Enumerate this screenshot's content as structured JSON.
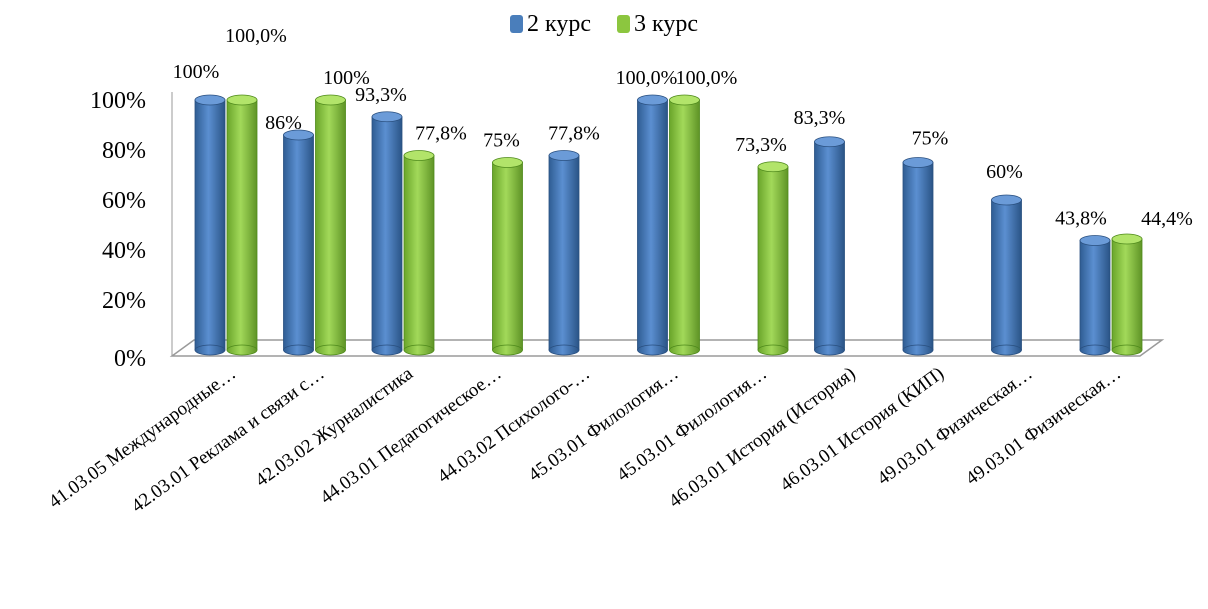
{
  "chart_data": {
    "type": "bar",
    "title": "",
    "xlabel": "",
    "ylabel": "",
    "ylim": [
      0,
      100
    ],
    "y_ticks": [
      "0%",
      "20%",
      "40%",
      "60%",
      "80%",
      "100%"
    ],
    "legend_position": "top",
    "categories": [
      "41.03.05 Международные…",
      "42.03.01 Реклама и связи с…",
      "42.03.02 Журналистика",
      "44.03.01 Педагогическое…",
      "44.03.02 Психолого-…",
      "45.03.01 Филология…",
      "45.03.01 Филология…",
      "46.03.01 История (История)",
      "46.03.01 История (КИП)",
      "49.03.01 Физическая…",
      "49.03.01 Физическая…"
    ],
    "series": [
      {
        "name": "2 курс",
        "color": "#4a7ebb",
        "values": [
          100,
          86,
          93.3,
          null,
          77.8,
          100,
          null,
          83.3,
          75,
          60,
          43.8
        ],
        "labels": [
          "100%",
          "86%",
          "93,3%",
          "",
          "77,8%",
          "100,0%",
          "",
          "83,3%",
          "75%",
          "60%",
          "43,8%"
        ]
      },
      {
        "name": "3 курс",
        "color": "#8cc63f",
        "values": [
          100,
          100,
          77.8,
          75,
          null,
          100,
          73.3,
          null,
          null,
          null,
          44.4
        ],
        "labels": [
          "100,0%",
          "100%",
          "77,8%",
          "75%",
          "",
          "100,0%",
          "73,3%",
          "",
          "",
          "",
          "44,4%"
        ]
      }
    ]
  }
}
